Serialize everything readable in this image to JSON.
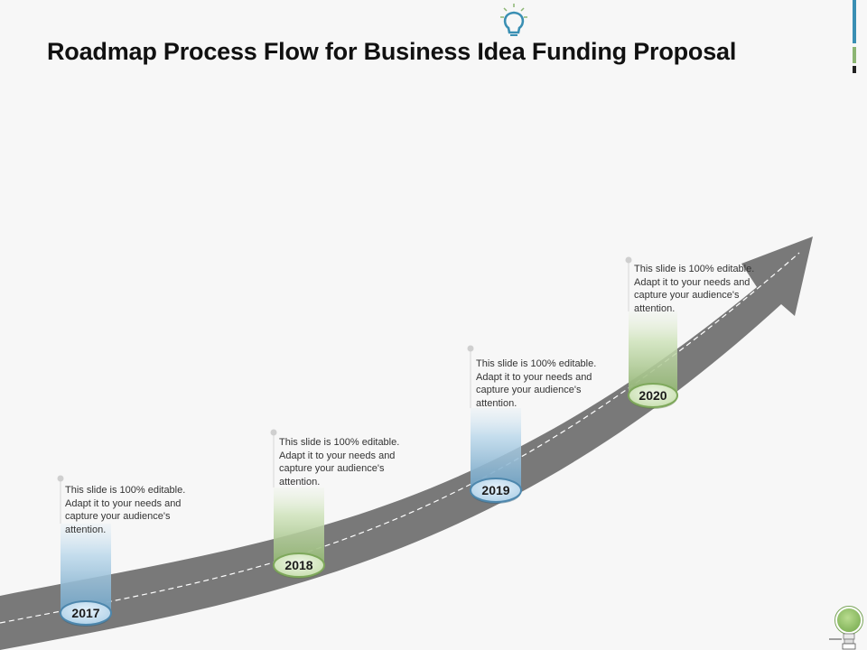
{
  "title": "Roadmap Process Flow for Business Idea Funding Proposal",
  "milestones": [
    {
      "year": "2017",
      "text": "This slide is 100% editable. Adapt it to your needs and capture your audience's attention.",
      "theme": "blue"
    },
    {
      "year": "2018",
      "text": "This slide is 100% editable. Adapt it to your needs and capture your audience's attention.",
      "theme": "green"
    },
    {
      "year": "2019",
      "text": "This slide is 100% editable. Adapt it to your needs and capture your audience's attention.",
      "theme": "blue"
    },
    {
      "year": "2020",
      "text": "This slide is 100% editable. Adapt it to your needs and capture your audience's attention.",
      "theme": "green"
    }
  ],
  "colors": {
    "road": "#797979",
    "road_dash": "#ffffff",
    "blue_light": "#cfe4f2",
    "blue_dark": "#6e9fc0",
    "blue_pill_border": "#4d87ad",
    "green_light": "#e3efd6",
    "green_dark": "#8fb171",
    "green_pill_border": "#7ea85b",
    "accent_blue": "#3a8fb3",
    "accent_green": "#8cb573"
  },
  "icons": {
    "header": "lightbulb-icon",
    "corner": "lightbulb-icon"
  }
}
